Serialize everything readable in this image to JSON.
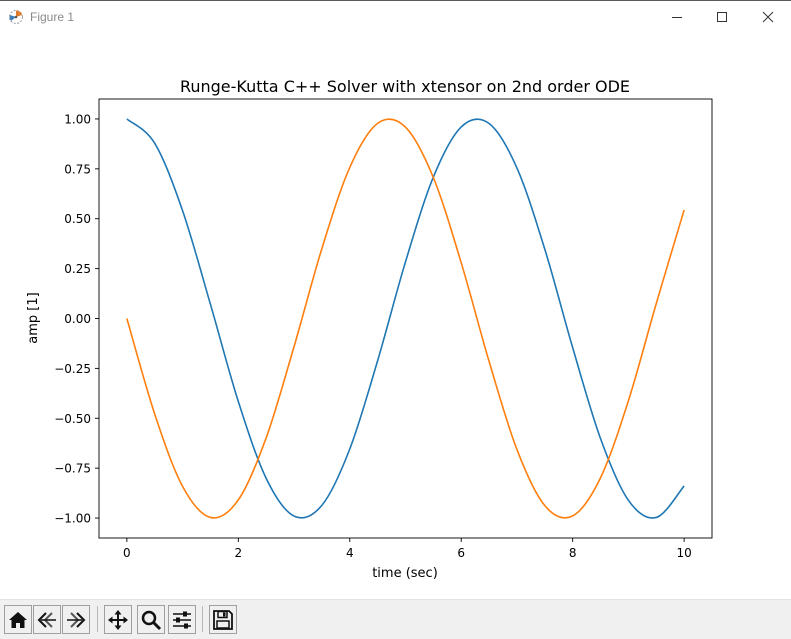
{
  "window": {
    "title": "Figure 1",
    "controls": [
      "minimize-icon",
      "maximize-icon",
      "close-icon"
    ]
  },
  "toolbar": {
    "buttons": [
      {
        "name": "home-button",
        "icon": "home-icon"
      },
      {
        "name": "back-button",
        "icon": "back-arrow-icon"
      },
      {
        "name": "forward-button",
        "icon": "forward-arrow-icon"
      },
      {
        "name": "pan-button",
        "icon": "move-arrows-icon"
      },
      {
        "name": "zoom-button",
        "icon": "magnifier-icon"
      },
      {
        "name": "configure-subplots-button",
        "icon": "sliders-icon"
      },
      {
        "name": "save-button",
        "icon": "floppy-disk-icon"
      }
    ]
  },
  "chart_data": {
    "type": "line",
    "title": "Runge-Kutta C++ Solver with xtensor on 2nd order ODE",
    "xlabel": "time (sec)",
    "ylabel": "amp [1]",
    "xlim": [
      -0.5,
      10.5
    ],
    "ylim": [
      -1.1,
      1.1
    ],
    "xticks": [
      0,
      2,
      4,
      6,
      8,
      10
    ],
    "xtick_labels": [
      "0",
      "2",
      "4",
      "6",
      "8",
      "10"
    ],
    "yticks": [
      1.0,
      0.75,
      0.5,
      0.25,
      0.0,
      -0.25,
      -0.5,
      -0.75,
      -1.0
    ],
    "ytick_labels": [
      "1.00",
      "0.75",
      "0.50",
      "0.25",
      "0.00",
      "−0.25",
      "−0.50",
      "−0.75",
      "−1.00"
    ],
    "grid": false,
    "legend": "none",
    "series": [
      {
        "color": "#1f77b4",
        "x": [
          0,
          0.5,
          1,
          1.5,
          2,
          2.5,
          3,
          3.5,
          4,
          4.5,
          5,
          5.5,
          6,
          6.5,
          7,
          7.5,
          8,
          8.5,
          9,
          9.5,
          10
        ],
        "y": [
          1.0,
          0.878,
          0.54,
          0.071,
          -0.416,
          -0.801,
          -0.99,
          -0.936,
          -0.654,
          -0.211,
          0.284,
          0.709,
          0.96,
          0.977,
          0.754,
          0.347,
          -0.146,
          -0.602,
          -0.911,
          -0.997,
          -0.839
        ]
      },
      {
        "color": "#ff7f0e",
        "x": [
          0,
          0.5,
          1,
          1.5,
          2,
          2.5,
          3,
          3.5,
          4,
          4.5,
          5,
          5.5,
          6,
          6.5,
          7,
          7.5,
          8,
          8.5,
          9,
          9.5,
          10
        ],
        "y": [
          0.0,
          -0.479,
          -0.841,
          -0.997,
          -0.909,
          -0.598,
          -0.141,
          0.351,
          0.757,
          0.978,
          0.959,
          0.706,
          0.279,
          -0.215,
          -0.657,
          -0.938,
          -0.989,
          -0.798,
          -0.412,
          0.075,
          0.544
        ]
      }
    ]
  }
}
